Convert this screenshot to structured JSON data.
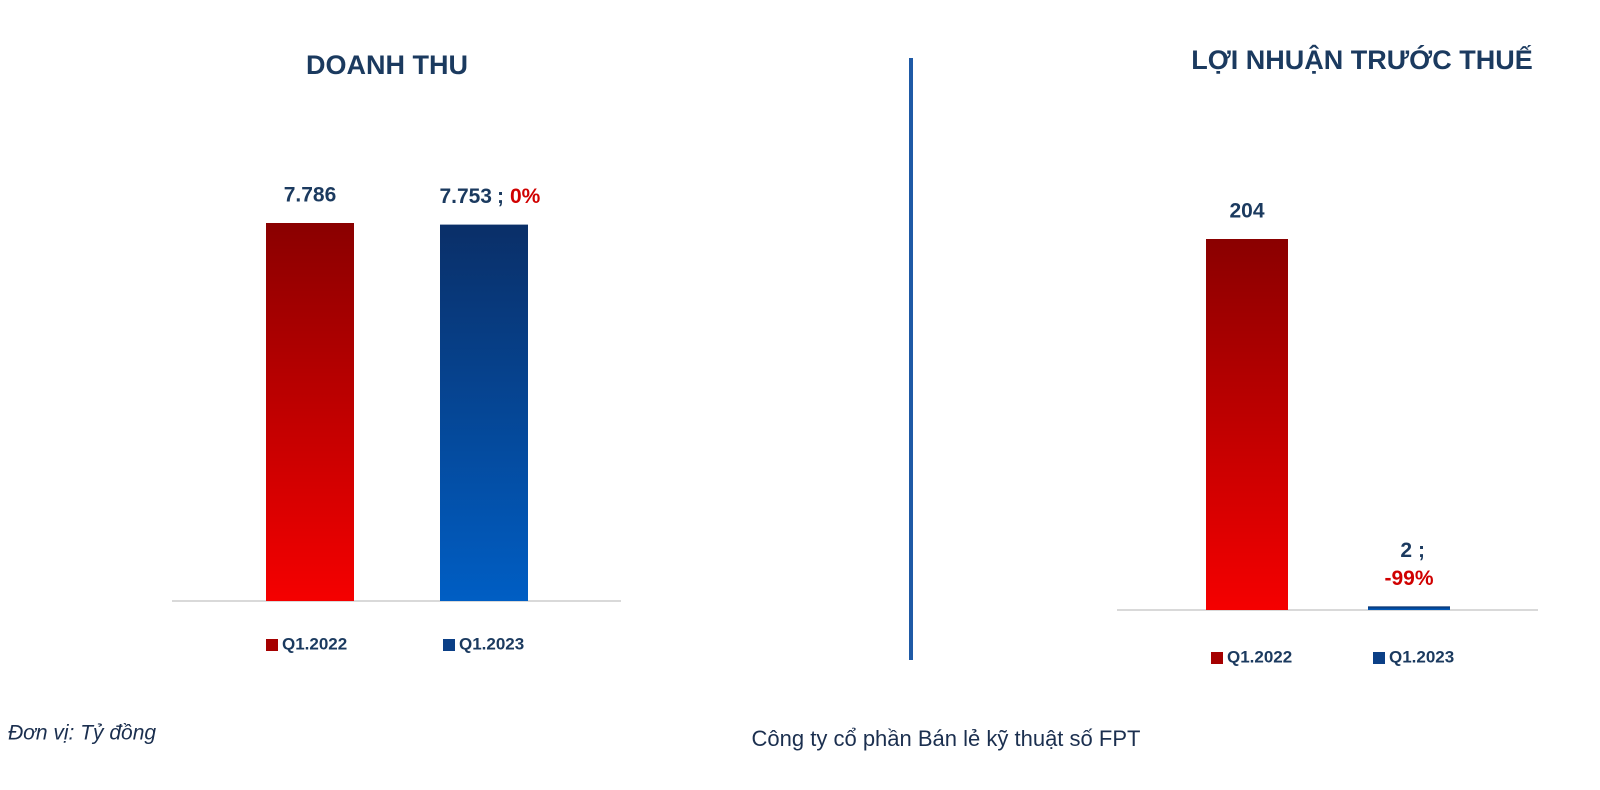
{
  "chart_data": [
    {
      "type": "bar",
      "title": "DOANH THU",
      "series": [
        {
          "name": "Q1.2022",
          "color": "#a50000",
          "values": [
            7786
          ],
          "value_labels": [
            "7.786"
          ]
        },
        {
          "name": "Q1.2023",
          "color": "#0b3f86",
          "values": [
            7753
          ],
          "value_labels": [
            "7.753"
          ],
          "annotation": {
            "separator": ";",
            "text": "0%"
          }
        }
      ]
    },
    {
      "type": "bar",
      "title": "LỢI NHUẬN TRƯỚC THUẾ",
      "series": [
        {
          "name": "Q1.2022",
          "color": "#a50000",
          "values": [
            204
          ],
          "value_labels": [
            "204"
          ]
        },
        {
          "name": "Q1.2023",
          "color": "#0b3f86",
          "values": [
            2
          ],
          "value_labels": [
            "2"
          ],
          "annotation": {
            "separator": ";",
            "text": "-99%"
          }
        }
      ]
    }
  ],
  "footer": {
    "unit": "Đơn vị: Tỷ đồng",
    "company": "Công ty cổ phần Bán lẻ kỹ thuật số FPT"
  }
}
